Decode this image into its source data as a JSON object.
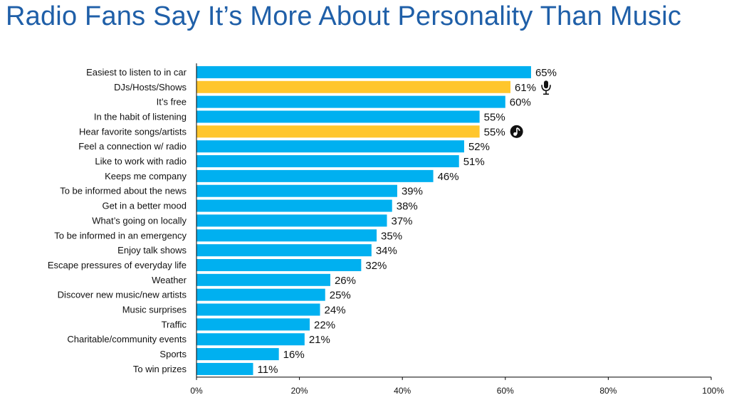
{
  "chart_data": {
    "type": "bar",
    "orientation": "horizontal",
    "title": "Radio Fans Say It’s More About Personality Than Music",
    "categories": [
      "Easiest to listen to in car",
      "DJs/Hosts/Shows",
      "It’s free",
      "In the habit of listening",
      "Hear favorite songs/artists",
      "Feel a connection w/ radio",
      "Like to work with radio",
      "Keeps me company",
      "To be informed about the news",
      "Get in a better mood",
      "What’s going on locally",
      "To be informed in an emergency",
      "Enjoy talk shows",
      "Escape pressures of everyday life",
      "Weather",
      "Discover new music/new artists",
      "Music surprises",
      "Traffic",
      "Charitable/community events",
      "Sports",
      "To win prizes"
    ],
    "values": [
      65,
      61,
      60,
      55,
      55,
      52,
      51,
      46,
      39,
      38,
      37,
      35,
      34,
      32,
      26,
      25,
      24,
      22,
      21,
      16,
      11
    ],
    "value_labels": [
      "65%",
      "61%",
      "60%",
      "55%",
      "55%",
      "52%",
      "51%",
      "46%",
      "39%",
      "38%",
      "37%",
      "35%",
      "34%",
      "32%",
      "26%",
      "25%",
      "24%",
      "22%",
      "21%",
      "16%",
      "11%"
    ],
    "highlighted_indices": [
      1,
      4
    ],
    "highlight_icons": {
      "1": "microphone-icon",
      "4": "music-note-icon"
    },
    "xlim": [
      0,
      100
    ],
    "x_ticks": [
      "0%",
      "20%",
      "40%",
      "60%",
      "80%",
      "100%"
    ],
    "x_tick_values": [
      0,
      20,
      40,
      60,
      80,
      100
    ],
    "grid": false,
    "legend": "none",
    "colors": {
      "bar": "#00b0f0",
      "highlight": "#ffc62c",
      "title": "#1f5fa8",
      "axis": "#000000"
    }
  }
}
